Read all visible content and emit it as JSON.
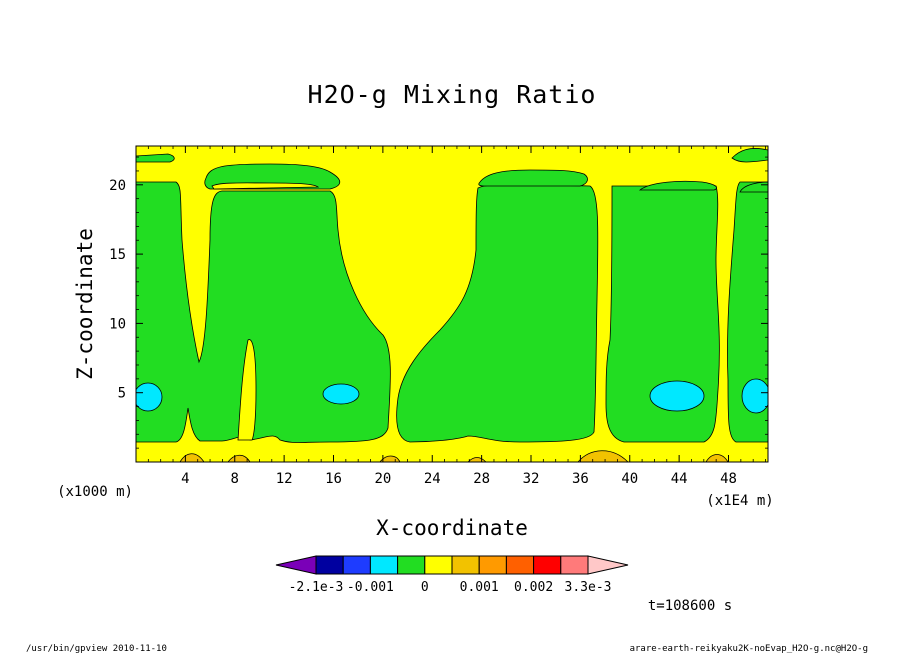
{
  "chart_data": {
    "type": "heatmap",
    "title": "H2O-g Mixing Ratio",
    "xlabel": "X-coordinate",
    "ylabel": "Z-coordinate",
    "x_unit_left": "(x1000 m)",
    "x_unit_right": "(x1E4 m)",
    "xlim": [
      0,
      51.2
    ],
    "ylim": [
      0,
      22.8
    ],
    "x_ticks": [
      "4",
      "8",
      "12",
      "16",
      "20",
      "24",
      "28",
      "32",
      "36",
      "40",
      "44",
      "48"
    ],
    "y_ticks": [
      "5",
      "10",
      "15",
      "20"
    ],
    "time_label": "t=108600 s",
    "colorbar": {
      "levels": [
        "-2.1e-3",
        "-0.001",
        "0",
        "0.001",
        "0.002",
        "3.3e-3"
      ],
      "colors": [
        "#7a00b8",
        "#0000a0",
        "#1e3cff",
        "#00e8ff",
        "#22dd22",
        "#ffff00",
        "#f2c200",
        "#ff9a00",
        "#ff6000",
        "#ff0000",
        "#ff7a7a",
        "#ffc8c8"
      ]
    },
    "fill_colors": {
      "background": "#ffff00",
      "green": "#22dd22",
      "cyan": "#00e8ff",
      "orange": "#f2c200"
    }
  },
  "footer": {
    "left": "/usr/bin/gpview   2010-11-10",
    "right": "arare-earth-reikyaku2K-noEvap_H2O-g.nc@H2O-g"
  }
}
